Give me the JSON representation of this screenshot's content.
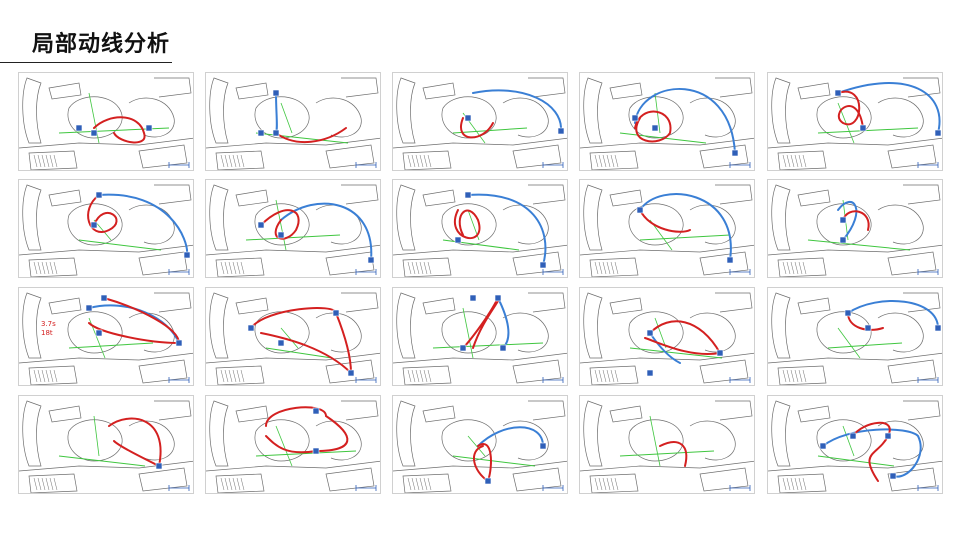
{
  "page": {
    "title": "局部动线分析"
  },
  "colors": {
    "primary_route": "#d42020",
    "secondary_route": "#3a7fd5",
    "sightline": "#3fc63f",
    "marker": "#2f5fb8",
    "sketch": "#6e6e6e"
  },
  "panels": [
    {
      "id": "r1c1",
      "note": ""
    },
    {
      "id": "r1c2",
      "note": ""
    },
    {
      "id": "r1c3",
      "note": ""
    },
    {
      "id": "r1c4",
      "note": ""
    },
    {
      "id": "r1c5",
      "note": ""
    },
    {
      "id": "r2c1",
      "note": ""
    },
    {
      "id": "r2c2",
      "note": ""
    },
    {
      "id": "r2c3",
      "note": ""
    },
    {
      "id": "r2c4",
      "note": ""
    },
    {
      "id": "r2c5",
      "note": ""
    },
    {
      "id": "r3c1",
      "note": "3.7s 18t"
    },
    {
      "id": "r3c2",
      "note": ""
    },
    {
      "id": "r3c3",
      "note": ""
    },
    {
      "id": "r3c4",
      "note": ""
    },
    {
      "id": "r3c5",
      "note": ""
    },
    {
      "id": "r4c1",
      "note": ""
    },
    {
      "id": "r4c2",
      "note": ""
    },
    {
      "id": "r4c3",
      "note": ""
    },
    {
      "id": "r4c4",
      "note": ""
    },
    {
      "id": "r4c5",
      "note": ""
    }
  ]
}
